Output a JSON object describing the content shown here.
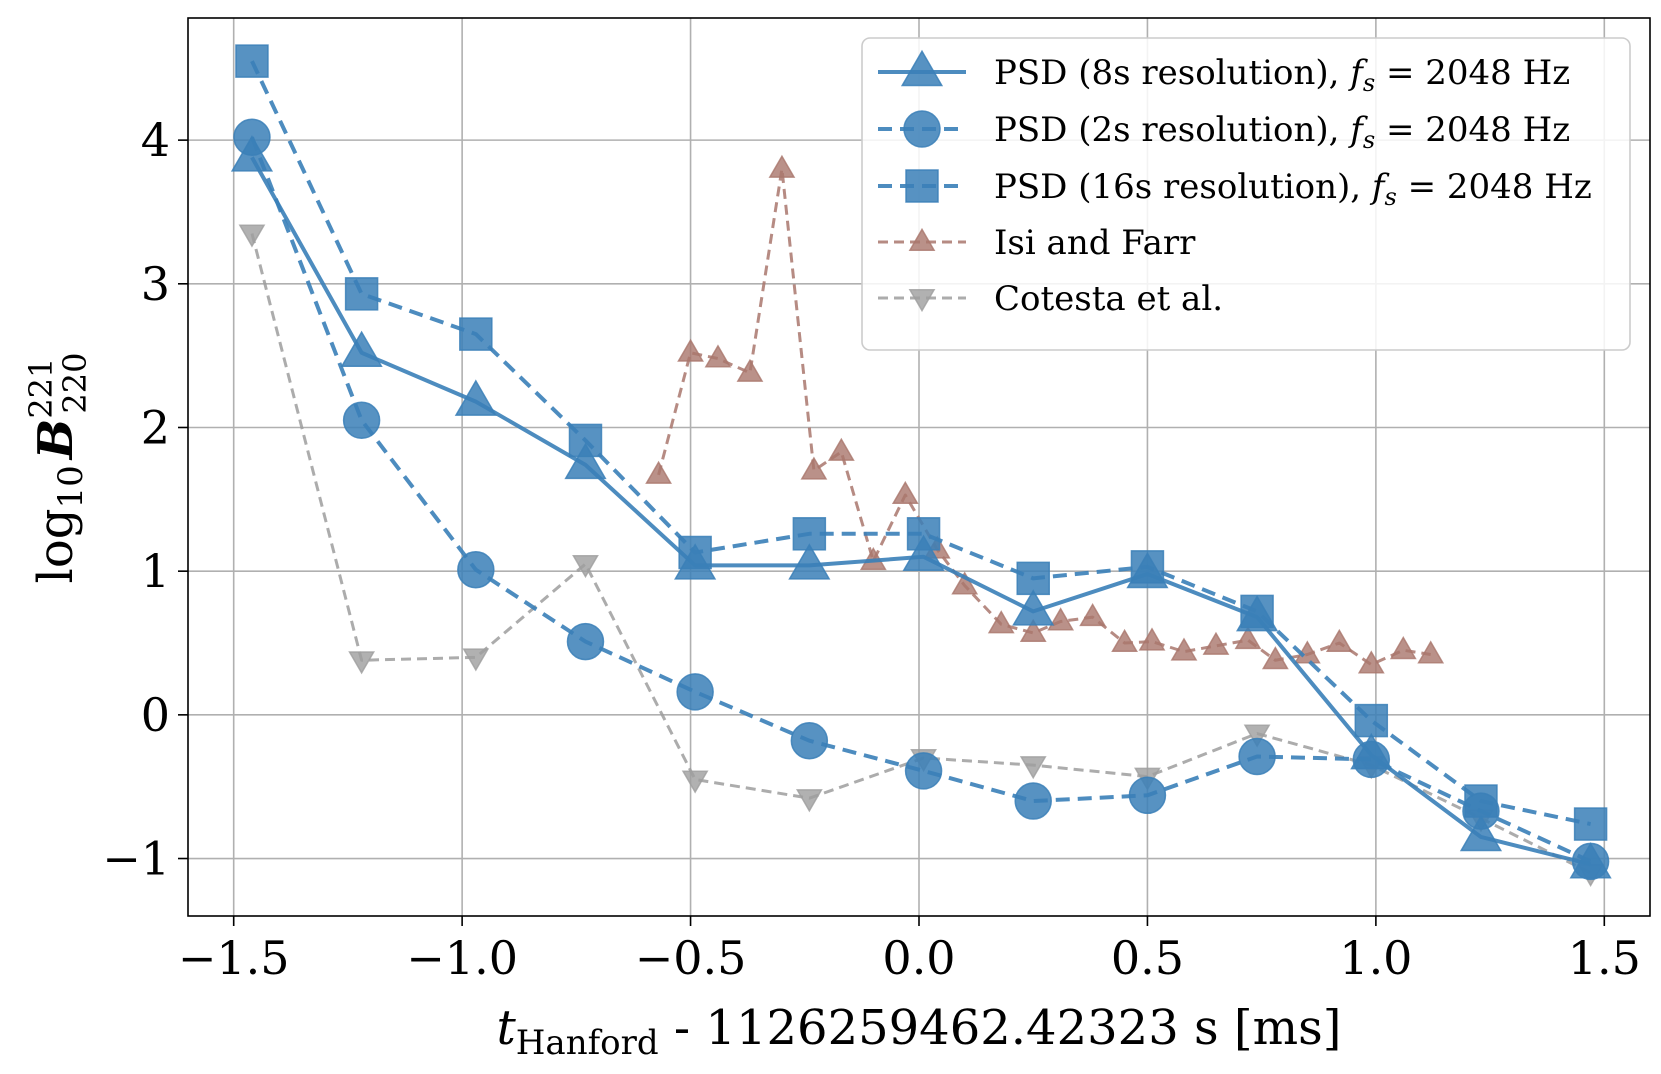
{
  "chart_data": {
    "type": "line",
    "title": "",
    "xlabel": "t_Hanford - 1126259462.42323 s [ms]",
    "xlabel_parts": {
      "var": "t",
      "sub": "Hanford",
      "rest": " - 1126259462.42323 s [ms]"
    },
    "ylabel": "log10 B^221_220",
    "ylabel_parts": {
      "log": "log",
      "log_sub": "10",
      "sym": "B",
      "sup": "221",
      "sub": "220"
    },
    "xlim": [
      -1.6,
      1.6
    ],
    "ylim": [
      -1.4,
      4.85
    ],
    "xticks": [
      -1.5,
      -1.0,
      -0.5,
      0.0,
      0.5,
      1.0,
      1.5
    ],
    "xtick_labels": [
      "−1.5",
      "−1.0",
      "−0.5",
      "0.0",
      "0.5",
      "1.0",
      "1.5"
    ],
    "yticks": [
      -1,
      0,
      1,
      2,
      3,
      4
    ],
    "ytick_labels": [
      "−1",
      "0",
      "1",
      "2",
      "3",
      "4"
    ],
    "grid": true,
    "legend_position": "top-right",
    "series": [
      {
        "name": "PSD (8s resolution), f_s = 2048 Hz",
        "legend_label": {
          "text": "PSD (8s resolution), ",
          "f": "f",
          "sub": "s",
          "eq": " = 2048 Hz"
        },
        "color": "#3a80b8",
        "marker": "triangle-up",
        "linestyle": "solid",
        "x": [
          -1.46,
          -1.22,
          -0.97,
          -0.73,
          -0.49,
          -0.24,
          0.01,
          0.25,
          0.5,
          0.74,
          0.99,
          1.23,
          1.47
        ],
        "y": [
          3.88,
          2.52,
          2.18,
          1.74,
          1.04,
          1.04,
          1.1,
          0.72,
          0.98,
          0.68,
          -0.28,
          -0.85,
          -1.04
        ]
      },
      {
        "name": "PSD (2s resolution), f_s = 2048 Hz",
        "legend_label": {
          "text": "PSD (2s resolution), ",
          "f": "f",
          "sub": "s",
          "eq": " = 2048 Hz"
        },
        "color": "#3a80b8",
        "marker": "circle",
        "linestyle": "dashed",
        "x": [
          -1.46,
          -1.22,
          -0.97,
          -0.73,
          -0.49,
          -0.24,
          0.01,
          0.25,
          0.5,
          0.74,
          0.99,
          1.23,
          1.47
        ],
        "y": [
          4.02,
          2.05,
          1.01,
          0.51,
          0.16,
          -0.18,
          -0.39,
          -0.6,
          -0.56,
          -0.29,
          -0.31,
          -0.67,
          -1.02
        ]
      },
      {
        "name": "PSD (16s resolution), f_s = 2048 Hz",
        "legend_label": {
          "text": "PSD (16s resolution), ",
          "f": "f",
          "sub": "s",
          "eq": " = 2048 Hz"
        },
        "color": "#3a80b8",
        "marker": "square",
        "linestyle": "dashed",
        "x": [
          -1.46,
          -1.22,
          -0.97,
          -0.73,
          -0.49,
          -0.24,
          0.01,
          0.25,
          0.5,
          0.74,
          0.99,
          1.23,
          1.47
        ],
        "y": [
          4.55,
          2.93,
          2.65,
          1.91,
          1.13,
          1.26,
          1.26,
          0.95,
          1.03,
          0.72,
          -0.04,
          -0.6,
          -0.76
        ]
      },
      {
        "name": "Isi and Farr",
        "legend_label": {
          "text": "Isi and Farr"
        },
        "color": "#a9776d",
        "marker": "triangle-up",
        "linestyle": "dashed",
        "x": [
          -0.57,
          -0.5,
          -0.44,
          -0.37,
          -0.3,
          -0.23,
          -0.17,
          -0.1,
          -0.03,
          0.04,
          0.1,
          0.18,
          0.25,
          0.31,
          0.38,
          0.45,
          0.51,
          0.58,
          0.65,
          0.72,
          0.78,
          0.85,
          0.92,
          0.99,
          1.06,
          1.12
        ],
        "y": [
          1.67,
          2.52,
          2.48,
          2.38,
          3.8,
          1.7,
          1.83,
          1.07,
          1.53,
          1.15,
          0.9,
          0.63,
          0.57,
          0.65,
          0.68,
          0.5,
          0.51,
          0.44,
          0.48,
          0.52,
          0.38,
          0.42,
          0.5,
          0.35,
          0.45,
          0.42
        ]
      },
      {
        "name": "Cotesta et al.",
        "legend_label": {
          "text": "Cotesta et al."
        },
        "color": "#9e9e9e",
        "marker": "triangle-down",
        "linestyle": "dashed",
        "x": [
          -1.46,
          -1.22,
          -0.97,
          -0.73,
          -0.49,
          -0.24,
          0.01,
          0.25,
          0.5,
          0.74,
          0.99,
          1.23,
          1.47
        ],
        "y": [
          3.35,
          0.38,
          0.4,
          1.05,
          -0.45,
          -0.58,
          -0.3,
          -0.35,
          -0.43,
          -0.13,
          -0.35,
          -0.72,
          -1.1
        ]
      }
    ]
  }
}
